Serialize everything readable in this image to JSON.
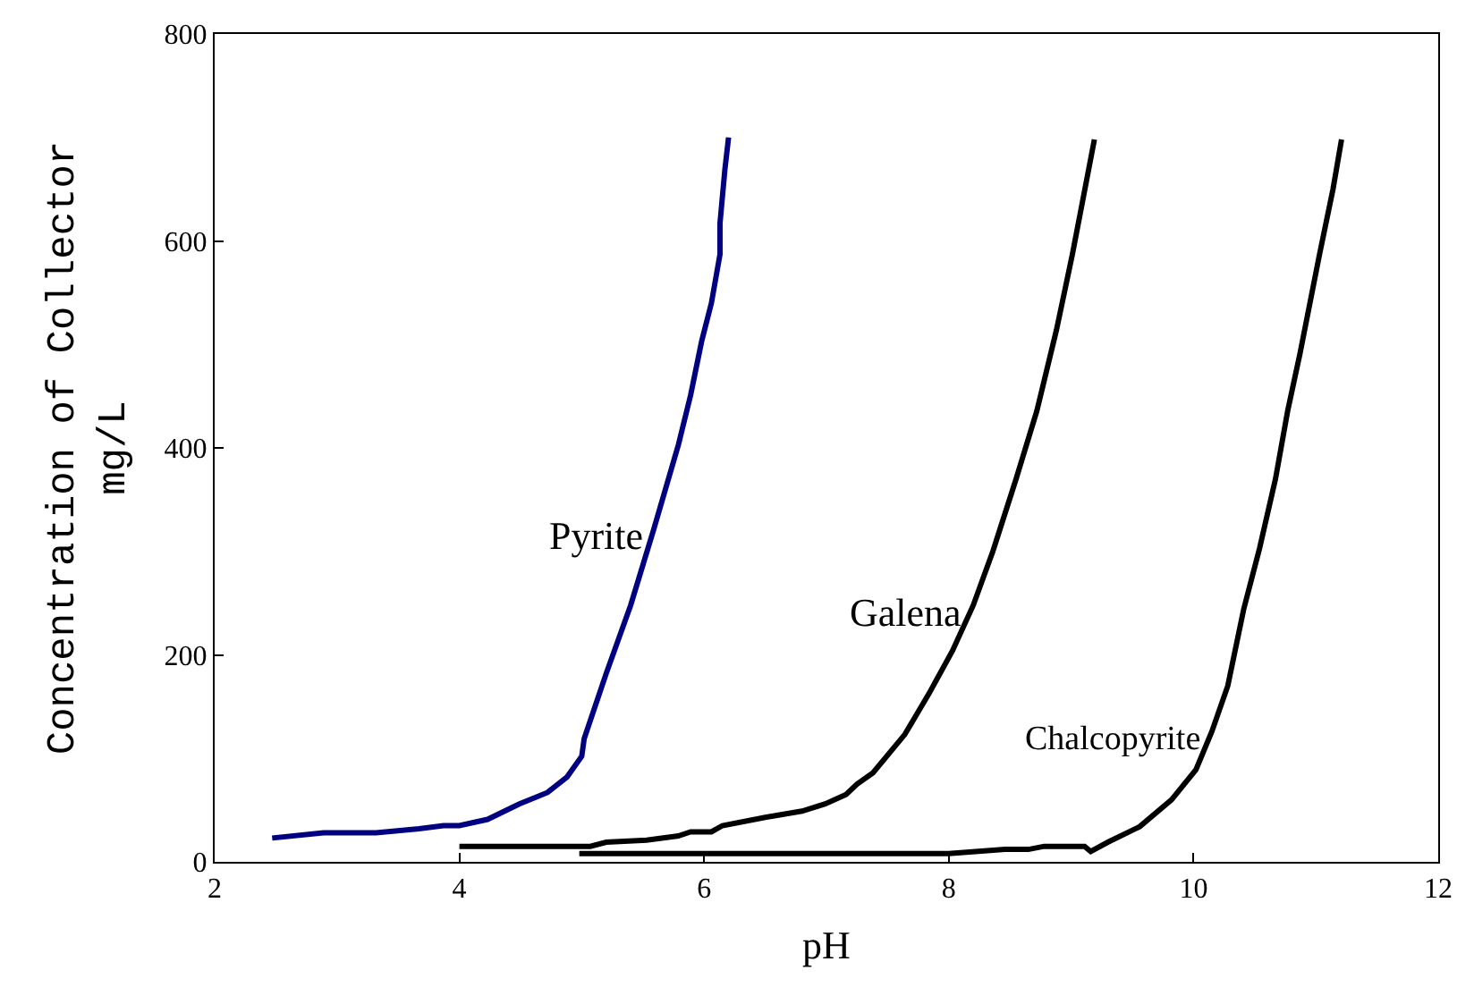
{
  "chart_data": {
    "type": "line",
    "xlabel": "pH",
    "ylabel": "Concentration of Collector\nmg/L",
    "xlim": [
      2,
      12
    ],
    "xticks": [
      2,
      4,
      6,
      8,
      10,
      12
    ],
    "ylim": [
      0,
      800
    ],
    "yticks": [
      0,
      200,
      400,
      600,
      800
    ],
    "legend": false,
    "marker": "none",
    "line_style": "solid",
    "series": [
      {
        "name": "Pyrite",
        "color": "#000080",
        "x": [
          2.47,
          2.89,
          3.32,
          3.67,
          3.87,
          4.0,
          4.23,
          4.49,
          4.72,
          4.88,
          5.0,
          5.02,
          5.2,
          5.4,
          5.59,
          5.79,
          5.89,
          5.98,
          6.06,
          6.13,
          6.13,
          6.17,
          6.2
        ],
        "values": [
          23,
          28,
          28,
          32,
          35,
          35,
          41,
          56,
          67,
          82,
          102,
          119,
          182,
          248,
          322,
          403,
          451,
          503,
          540,
          587,
          617,
          669,
          700
        ]
      },
      {
        "name": "Galena",
        "color": "#000000",
        "x": [
          4.0,
          5.07,
          5.2,
          5.53,
          5.79,
          5.89,
          6.06,
          6.15,
          6.5,
          6.8,
          6.99,
          7.16,
          7.25,
          7.38,
          7.64,
          7.84,
          8.03,
          8.2,
          8.36,
          8.55,
          8.72,
          8.88,
          9.01,
          9.07,
          9.19
        ],
        "values": [
          15,
          15,
          19,
          21,
          25,
          29,
          29,
          35,
          43,
          49,
          56,
          65,
          75,
          86,
          123,
          163,
          204,
          248,
          300,
          370,
          436,
          514,
          587,
          624,
          698
        ]
      },
      {
        "name": "Chalcopyrite",
        "color": "#000000",
        "x": [
          4.98,
          8.0,
          8.46,
          8.65,
          8.78,
          9.11,
          9.16,
          9.3,
          9.56,
          9.82,
          10.02,
          10.15,
          10.28,
          10.41,
          10.54,
          10.67,
          10.77,
          10.87,
          11.03,
          11.14,
          11.21
        ],
        "values": [
          8,
          8,
          12,
          12,
          15,
          15,
          10,
          19,
          34,
          60,
          89,
          126,
          170,
          244,
          303,
          370,
          436,
          491,
          587,
          650,
          698
        ]
      }
    ]
  }
}
